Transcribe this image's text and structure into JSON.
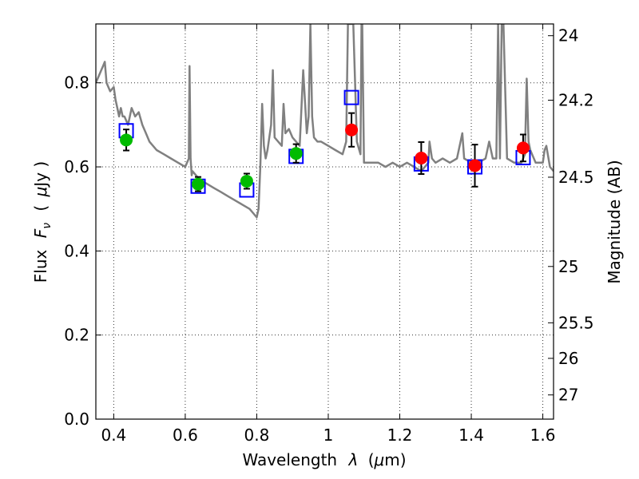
{
  "chart_data": {
    "type": "scatter",
    "xlabel": "Wavelength",
    "xlabel_symbol": "λ",
    "xlabel_unit_open": "(",
    "xlabel_unit_mu": "μ",
    "xlabel_unit_rest": "m)",
    "ylabel": "Flux",
    "ylabel_symbol": "F",
    "ylabel_subscript": "ν",
    "ylabel_unit_open": "(",
    "ylabel_unit_mu": "μ",
    "ylabel_unit_rest": "Jy )",
    "y2label": "Magnitude (AB)",
    "xlim": [
      0.35,
      1.63
    ],
    "ylim": [
      0.0,
      0.94
    ],
    "x_ticks": [
      0.4,
      0.6,
      0.8,
      1.0,
      1.2,
      1.4,
      1.6
    ],
    "x_tick_labels": [
      "0.4",
      "0.6",
      "0.8",
      "1",
      "1.2",
      "1.4",
      "1.6"
    ],
    "y_ticks": [
      0.0,
      0.2,
      0.4,
      0.6,
      0.8
    ],
    "y_tick_labels": [
      "0.0",
      "0.2",
      "0.4",
      "0.6",
      "0.8"
    ],
    "y2_ticks": [
      24,
      24.2,
      24.5,
      25,
      25.5,
      26,
      27
    ],
    "y2_tick_labels": [
      "24",
      "24.2",
      "24.5",
      "25",
      "25.5",
      "26",
      "27"
    ],
    "grid": true,
    "colors": {
      "template": "#808080",
      "green_points": "#00bb00",
      "red_points": "#ff0000",
      "model_squares": "#0000ff",
      "errorbars": "#000000"
    },
    "series": [
      {
        "kind": "line",
        "x": [
          0.35,
          0.36,
          0.37,
          0.375,
          0.38,
          0.39,
          0.4,
          0.405,
          0.41,
          0.415,
          0.42,
          0.425,
          0.43,
          0.44,
          0.45,
          0.46,
          0.47,
          0.48,
          0.49,
          0.5,
          0.52,
          0.54,
          0.56,
          0.58,
          0.6,
          0.61,
          0.612,
          0.615,
          0.618,
          0.62,
          0.64,
          0.66,
          0.68,
          0.7,
          0.72,
          0.74,
          0.76,
          0.78,
          0.79,
          0.8,
          0.805,
          0.81,
          0.815,
          0.82,
          0.825,
          0.83,
          0.84,
          0.845,
          0.85,
          0.86,
          0.87,
          0.875,
          0.88,
          0.89,
          0.9,
          0.91,
          0.92,
          0.93,
          0.94,
          0.945,
          0.95,
          0.955,
          0.96,
          0.97,
          0.98,
          1.0,
          1.02,
          1.04,
          1.05,
          1.055,
          1.06,
          1.065,
          1.07,
          1.08,
          1.09,
          1.093,
          1.095,
          1.1,
          1.12,
          1.14,
          1.16,
          1.18,
          1.2,
          1.22,
          1.24,
          1.26,
          1.28,
          1.283,
          1.29,
          1.3,
          1.32,
          1.34,
          1.36,
          1.37,
          1.375,
          1.38,
          1.4,
          1.42,
          1.44,
          1.45,
          1.46,
          1.47,
          1.475,
          1.48,
          1.485,
          1.49,
          1.5,
          1.52,
          1.54,
          1.55,
          1.555,
          1.56,
          1.565,
          1.57,
          1.58,
          1.6,
          1.605,
          1.61,
          1.62,
          1.63
        ],
        "y": [
          0.8,
          0.82,
          0.84,
          0.85,
          0.8,
          0.78,
          0.79,
          0.76,
          0.74,
          0.72,
          0.74,
          0.72,
          0.72,
          0.7,
          0.74,
          0.72,
          0.73,
          0.7,
          0.68,
          0.66,
          0.64,
          0.63,
          0.62,
          0.61,
          0.6,
          0.62,
          0.84,
          0.62,
          0.58,
          0.59,
          0.57,
          0.56,
          0.55,
          0.54,
          0.53,
          0.52,
          0.51,
          0.5,
          0.49,
          0.48,
          0.5,
          0.6,
          0.75,
          0.65,
          0.62,
          0.64,
          0.7,
          0.83,
          0.67,
          0.66,
          0.65,
          0.75,
          0.68,
          0.69,
          0.67,
          0.66,
          0.65,
          0.83,
          0.68,
          0.72,
          0.94,
          0.72,
          0.67,
          0.66,
          0.66,
          0.65,
          0.64,
          0.63,
          0.66,
          0.94,
          0.94,
          0.94,
          0.94,
          0.66,
          0.63,
          0.94,
          0.94,
          0.61,
          0.61,
          0.61,
          0.6,
          0.61,
          0.6,
          0.61,
          0.6,
          0.59,
          0.61,
          0.66,
          0.62,
          0.61,
          0.62,
          0.61,
          0.62,
          0.66,
          0.68,
          0.62,
          0.61,
          0.61,
          0.62,
          0.66,
          0.62,
          0.62,
          0.94,
          0.62,
          0.94,
          0.94,
          0.62,
          0.61,
          0.61,
          0.63,
          0.81,
          0.66,
          0.64,
          0.63,
          0.61,
          0.61,
          0.64,
          0.65,
          0.6,
          0.59
        ]
      },
      {
        "kind": "scatter-squares",
        "x": [
          0.435,
          0.636,
          0.772,
          0.91,
          1.065,
          1.26,
          1.41,
          1.545
        ],
        "y": [
          0.686,
          0.554,
          0.545,
          0.625,
          0.765,
          0.607,
          0.6,
          0.622
        ]
      },
      {
        "kind": "scatter-green",
        "x": [
          0.435,
          0.636,
          0.772,
          0.91
        ],
        "y": [
          0.664,
          0.559,
          0.566,
          0.632
        ],
        "err": [
          0.025,
          0.017,
          0.018,
          0.022
        ]
      },
      {
        "kind": "scatter-red",
        "x": [
          1.065,
          1.26,
          1.41,
          1.545
        ],
        "y": [
          0.688,
          0.621,
          0.603,
          0.645
        ],
        "err": [
          0.04,
          0.038,
          0.05,
          0.032
        ]
      }
    ]
  }
}
